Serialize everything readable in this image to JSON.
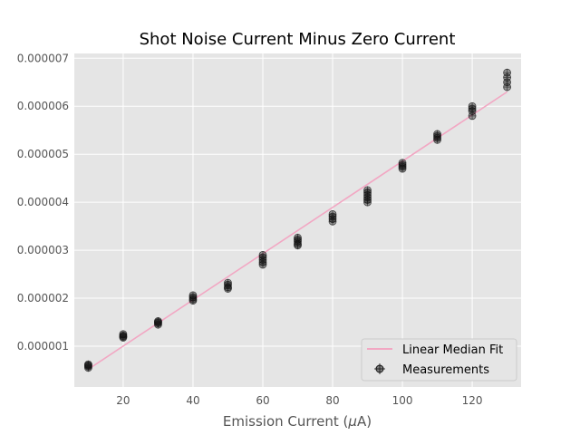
{
  "chart_data": {
    "type": "scatter",
    "title": "Shot Noise Current Minus Zero Current",
    "xlabel_prefix": "Emission Current (",
    "xlabel_mu": "μ",
    "xlabel_suffix": "A)",
    "ylabel": "",
    "xlim": [
      6,
      134
    ],
    "ylim": [
      1.5e-07,
      7.1e-06
    ],
    "x_ticks": [
      20,
      40,
      60,
      80,
      100,
      120
    ],
    "x_tick_labels": [
      "20",
      "40",
      "60",
      "80",
      "100",
      "120"
    ],
    "y_ticks": [
      1e-06,
      2e-06,
      3e-06,
      4e-06,
      5e-06,
      6e-06,
      7e-06
    ],
    "y_tick_labels": [
      "0.000001",
      "0.000002",
      "0.000003",
      "0.000004",
      "0.000005",
      "0.000006",
      "0.000007"
    ],
    "grid": true,
    "legend_position": "bottom-right",
    "series": [
      {
        "name": "Linear Median Fit",
        "kind": "line",
        "color": "#f2a7c3",
        "x": [
          10,
          130
        ],
        "y": [
          5.2e-07,
          6.3e-06
        ]
      },
      {
        "name": "Measurements",
        "kind": "errorbar-scatter",
        "color": "#000000",
        "points": [
          {
            "x": 10,
            "y": [
              5.5e-07,
              5.8e-07,
              6e-07,
              6.2e-07
            ]
          },
          {
            "x": 20,
            "y": [
              1.18e-06,
              1.2e-06,
              1.22e-06,
              1.25e-06
            ]
          },
          {
            "x": 30,
            "y": [
              1.45e-06,
              1.48e-06,
              1.5e-06,
              1.52e-06
            ]
          },
          {
            "x": 40,
            "y": [
              1.95e-06,
              1.98e-06,
              2.02e-06,
              2.06e-06
            ]
          },
          {
            "x": 50,
            "y": [
              2.2e-06,
              2.23e-06,
              2.28e-06,
              2.32e-06
            ]
          },
          {
            "x": 60,
            "y": [
              2.7e-06,
              2.75e-06,
              2.8e-06,
              2.85e-06,
              2.9e-06
            ]
          },
          {
            "x": 70,
            "y": [
              3.1e-06,
              3.13e-06,
              3.18e-06,
              3.22e-06,
              3.26e-06
            ]
          },
          {
            "x": 80,
            "y": [
              3.6e-06,
              3.65e-06,
              3.7e-06,
              3.75e-06
            ]
          },
          {
            "x": 90,
            "y": [
              4e-06,
              4.05e-06,
              4.1e-06,
              4.15e-06,
              4.2e-06,
              4.25e-06
            ]
          },
          {
            "x": 100,
            "y": [
              4.7e-06,
              4.74e-06,
              4.78e-06,
              4.82e-06
            ]
          },
          {
            "x": 110,
            "y": [
              5.3e-06,
              5.34e-06,
              5.38e-06,
              5.42e-06
            ]
          },
          {
            "x": 120,
            "y": [
              5.8e-06,
              5.9e-06,
              5.95e-06,
              6e-06
            ]
          },
          {
            "x": 130,
            "y": [
              6.4e-06,
              6.5e-06,
              6.6e-06,
              6.7e-06
            ]
          }
        ],
        "yerr": 8e-08,
        "xerr": 1
      }
    ]
  }
}
